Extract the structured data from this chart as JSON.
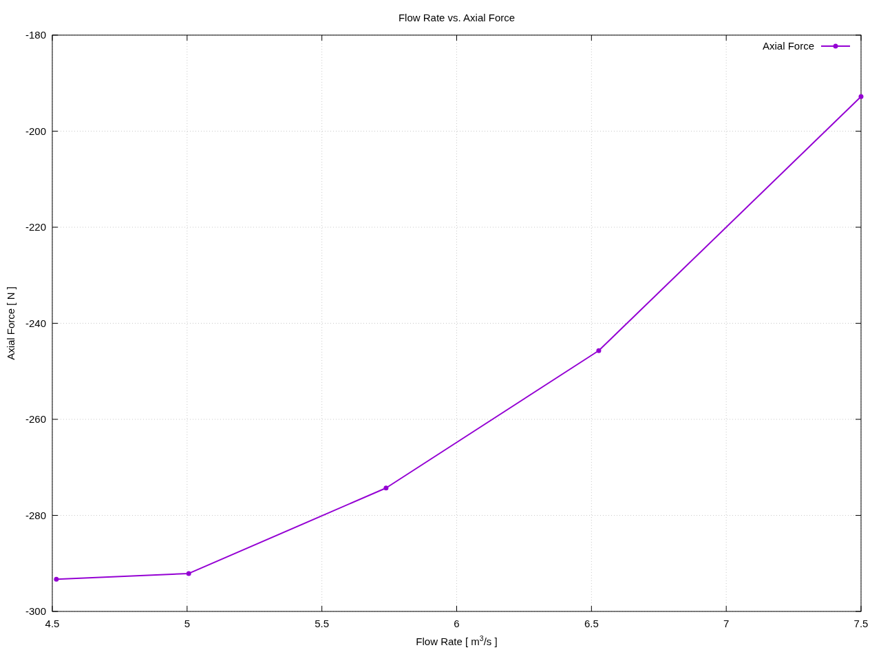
{
  "chart_data": {
    "type": "line",
    "title": "Flow Rate vs. Axial Force",
    "xlabel": "Flow Rate [ m$^{3}$/s ]",
    "ylabel": "Axial Force [ N ]",
    "x": [
      4.515,
      5.006,
      5.738,
      6.527,
      7.5
    ],
    "series": [
      {
        "name": "Axial Force",
        "color": "#9400d3",
        "values": [
          -293.3,
          -292.1,
          -274.3,
          -245.7,
          -192.8
        ]
      }
    ],
    "xlim": [
      4.5,
      7.5
    ],
    "xticks": [
      4.5,
      5,
      5.5,
      6,
      6.5,
      7,
      7.5
    ],
    "ylim": [
      -300,
      -180
    ],
    "yticks": [
      -300,
      -280,
      -260,
      -240,
      -220,
      -200,
      -180
    ],
    "grid": true,
    "legend": "top right",
    "marker": "circle",
    "line_style": "solid"
  }
}
